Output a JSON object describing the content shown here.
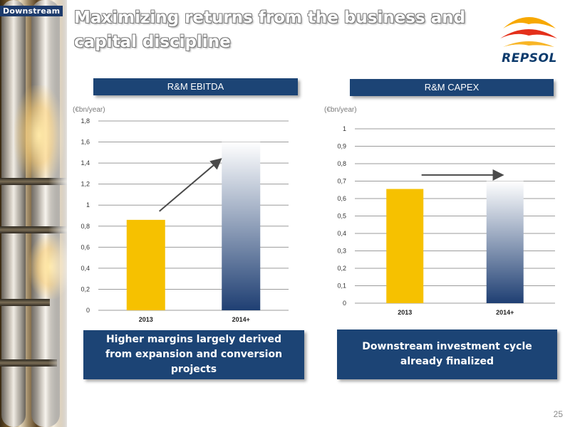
{
  "section_tag": "Downstream",
  "title": "Maximizing returns from the business and capital discipline",
  "logo": {
    "name": "REPSOL",
    "colors": [
      "#f7a800",
      "#e4301b",
      "#0b3a6c"
    ]
  },
  "page_number": "25",
  "colors": {
    "header_blue": "#1c4475",
    "bar_2013": "#f6c100",
    "bar_2014_top": "#ffffff",
    "bar_2014_bottom": "#1f3f73",
    "arrow": "#4a4a4a"
  },
  "chart_data": [
    {
      "type": "bar",
      "title": "R&M EBITDA",
      "ylabel": "(€bn/year)",
      "categories": [
        "2013",
        "2014+"
      ],
      "values": [
        0.86,
        1.6
      ],
      "ylim": [
        0,
        1.8
      ],
      "yticks": [
        "0",
        "0,2",
        "0,4",
        "0,6",
        "0,8",
        "1",
        "1,2",
        "1,4",
        "1,6",
        "1,8"
      ],
      "grid": true,
      "annotation": "arrow rising from 2013 bar toward 2014+ bar"
    },
    {
      "type": "bar",
      "title": "R&M CAPEX",
      "ylabel": "(€bn/year)",
      "categories": [
        "2013",
        "2014+"
      ],
      "values": [
        0.655,
        0.7
      ],
      "ylim": [
        0,
        1
      ],
      "yticks": [
        "0",
        "0,1",
        "0,2",
        "0,3",
        "0,4",
        "0,5",
        "0,6",
        "0,7",
        "0,8",
        "0,9",
        "1"
      ],
      "grid": true,
      "annotation": "horizontal arrow from 2013 bar toward 2014+ bar"
    }
  ],
  "callouts": {
    "left": "Higher margins largely derived from expansion and conversion projects",
    "right": "Downstream investment cycle already finalized"
  }
}
